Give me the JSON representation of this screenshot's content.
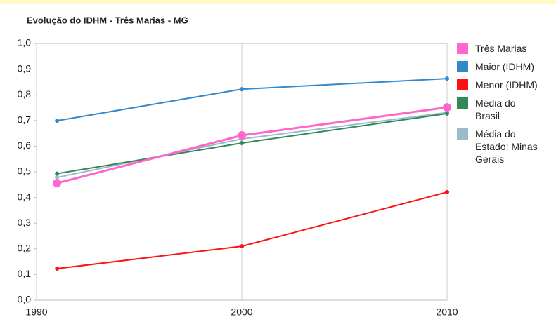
{
  "chart_data": {
    "type": "line",
    "title": "Evolução do IDHM - Três Marias - MG",
    "x": [
      1991,
      2000,
      2010
    ],
    "xlim": [
      1990,
      2010
    ],
    "xticks": [
      1990,
      2000,
      2010
    ],
    "ylim": [
      0,
      1
    ],
    "yticks": [
      {
        "value": 0,
        "label": "0,0"
      },
      {
        "value": 0.1,
        "label": "0,1"
      },
      {
        "value": 0.2,
        "label": "0,2"
      },
      {
        "value": 0.3,
        "label": "0,3"
      },
      {
        "value": 0.4,
        "label": "0,4"
      },
      {
        "value": 0.5,
        "label": "0,5"
      },
      {
        "value": 0.6,
        "label": "0,6"
      },
      {
        "value": 0.7,
        "label": "0,7"
      },
      {
        "value": 0.8,
        "label": "0,8"
      },
      {
        "value": 0.9,
        "label": "0,9"
      },
      {
        "value": 1,
        "label": "1,0"
      }
    ],
    "legend": "right",
    "series": [
      {
        "name": "Três Marias",
        "color": "#ff66cc",
        "values": [
          0.456,
          0.642,
          0.751
        ]
      },
      {
        "name": "Maior (IDHM)",
        "color": "#3388cc",
        "values": [
          0.699,
          0.822,
          0.863
        ]
      },
      {
        "name": "Menor (IDHM)",
        "color": "#ff1111",
        "values": [
          0.123,
          0.21,
          0.421
        ]
      },
      {
        "name": "Média do Brasil",
        "color": "#338855",
        "values": [
          0.493,
          0.612,
          0.727
        ]
      },
      {
        "name": "Média do Estado: Minas Gerais",
        "color": "#99bbcc",
        "values": [
          0.478,
          0.628,
          0.731
        ]
      }
    ]
  }
}
